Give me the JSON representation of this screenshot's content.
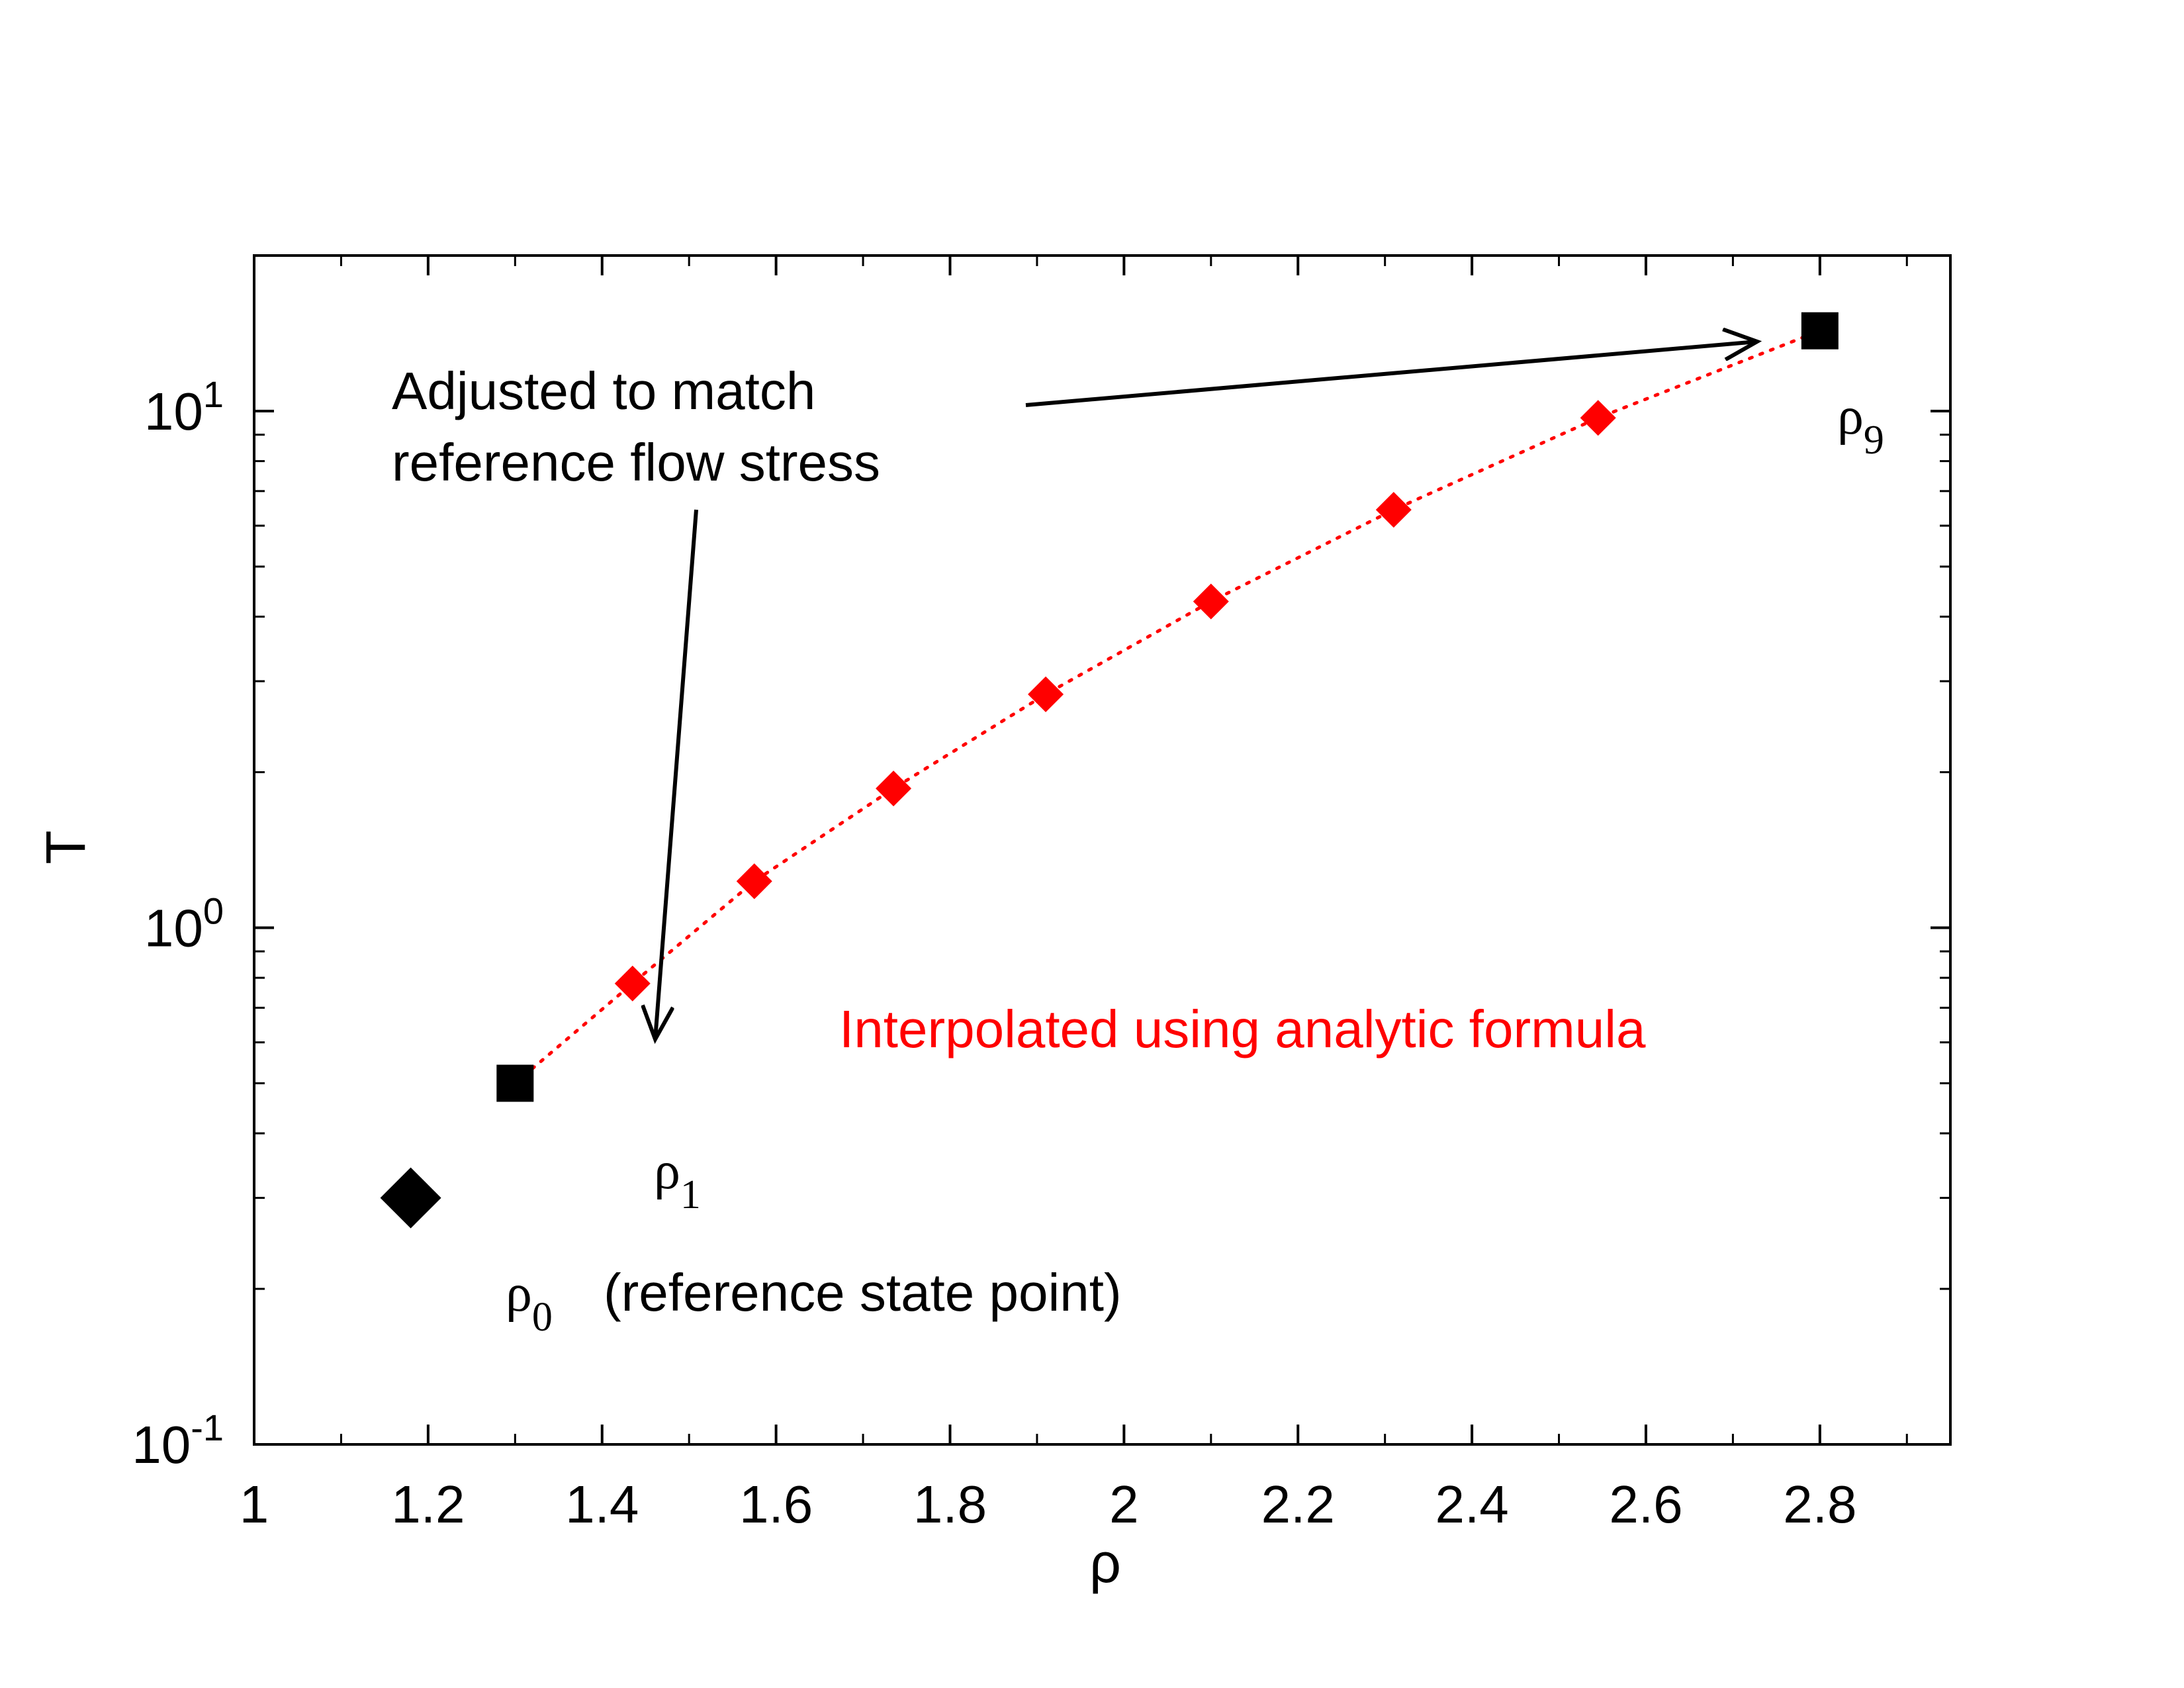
{
  "chart_data": {
    "type": "scatter",
    "xlabel": "ρ",
    "ylabel": "T",
    "xlim": [
      1.0,
      2.95
    ],
    "ylim": [
      0.1,
      20
    ],
    "yscale": "log",
    "grid": false,
    "x_ticks": [
      {
        "value": 1.0,
        "label": "1"
      },
      {
        "value": 1.2,
        "label": "1.2"
      },
      {
        "value": 1.4,
        "label": "1.4"
      },
      {
        "value": 1.6,
        "label": "1.6"
      },
      {
        "value": 1.8,
        "label": "1.8"
      },
      {
        "value": 2.0,
        "label": "2"
      },
      {
        "value": 2.2,
        "label": "2.2"
      },
      {
        "value": 2.4,
        "label": "2.4"
      },
      {
        "value": 2.6,
        "label": "2.6"
      },
      {
        "value": 2.8,
        "label": "2.8"
      }
    ],
    "y_ticks": [
      {
        "value": 0.1,
        "base": "10",
        "exp": "-1"
      },
      {
        "value": 1,
        "base": "10",
        "exp": "0"
      },
      {
        "value": 10,
        "base": "10",
        "exp": "1"
      }
    ],
    "series": [
      {
        "marker": "diamond-large",
        "color": "#000000",
        "points": [
          {
            "x": 1.18,
            "y": 0.3
          }
        ]
      },
      {
        "marker": "square",
        "color": "#000000",
        "points": [
          {
            "x": 1.3,
            "y": 0.5
          },
          {
            "x": 2.8,
            "y": 14.3
          }
        ]
      },
      {
        "marker": "diamond",
        "color": "#ff0000",
        "line": "dotted",
        "points": [
          {
            "x": 1.435,
            "y": 0.78
          },
          {
            "x": 1.575,
            "y": 1.23
          },
          {
            "x": 1.735,
            "y": 1.86
          },
          {
            "x": 1.91,
            "y": 2.83
          },
          {
            "x": 2.1,
            "y": 4.28
          },
          {
            "x": 2.31,
            "y": 6.44
          },
          {
            "x": 2.545,
            "y": 9.7
          }
        ]
      }
    ],
    "annotations": [
      {
        "text_line1": "Adjusted to match",
        "text_line2": "reference flow stress"
      },
      {
        "text": "Interpolated using analytic formula",
        "color": "#ff0000"
      },
      {
        "symbol": "ρ",
        "sub": "1"
      },
      {
        "symbol": "ρ",
        "sub": "9"
      },
      {
        "symbol": "ρ",
        "sub": "0",
        "text": "(reference state point)"
      }
    ]
  }
}
